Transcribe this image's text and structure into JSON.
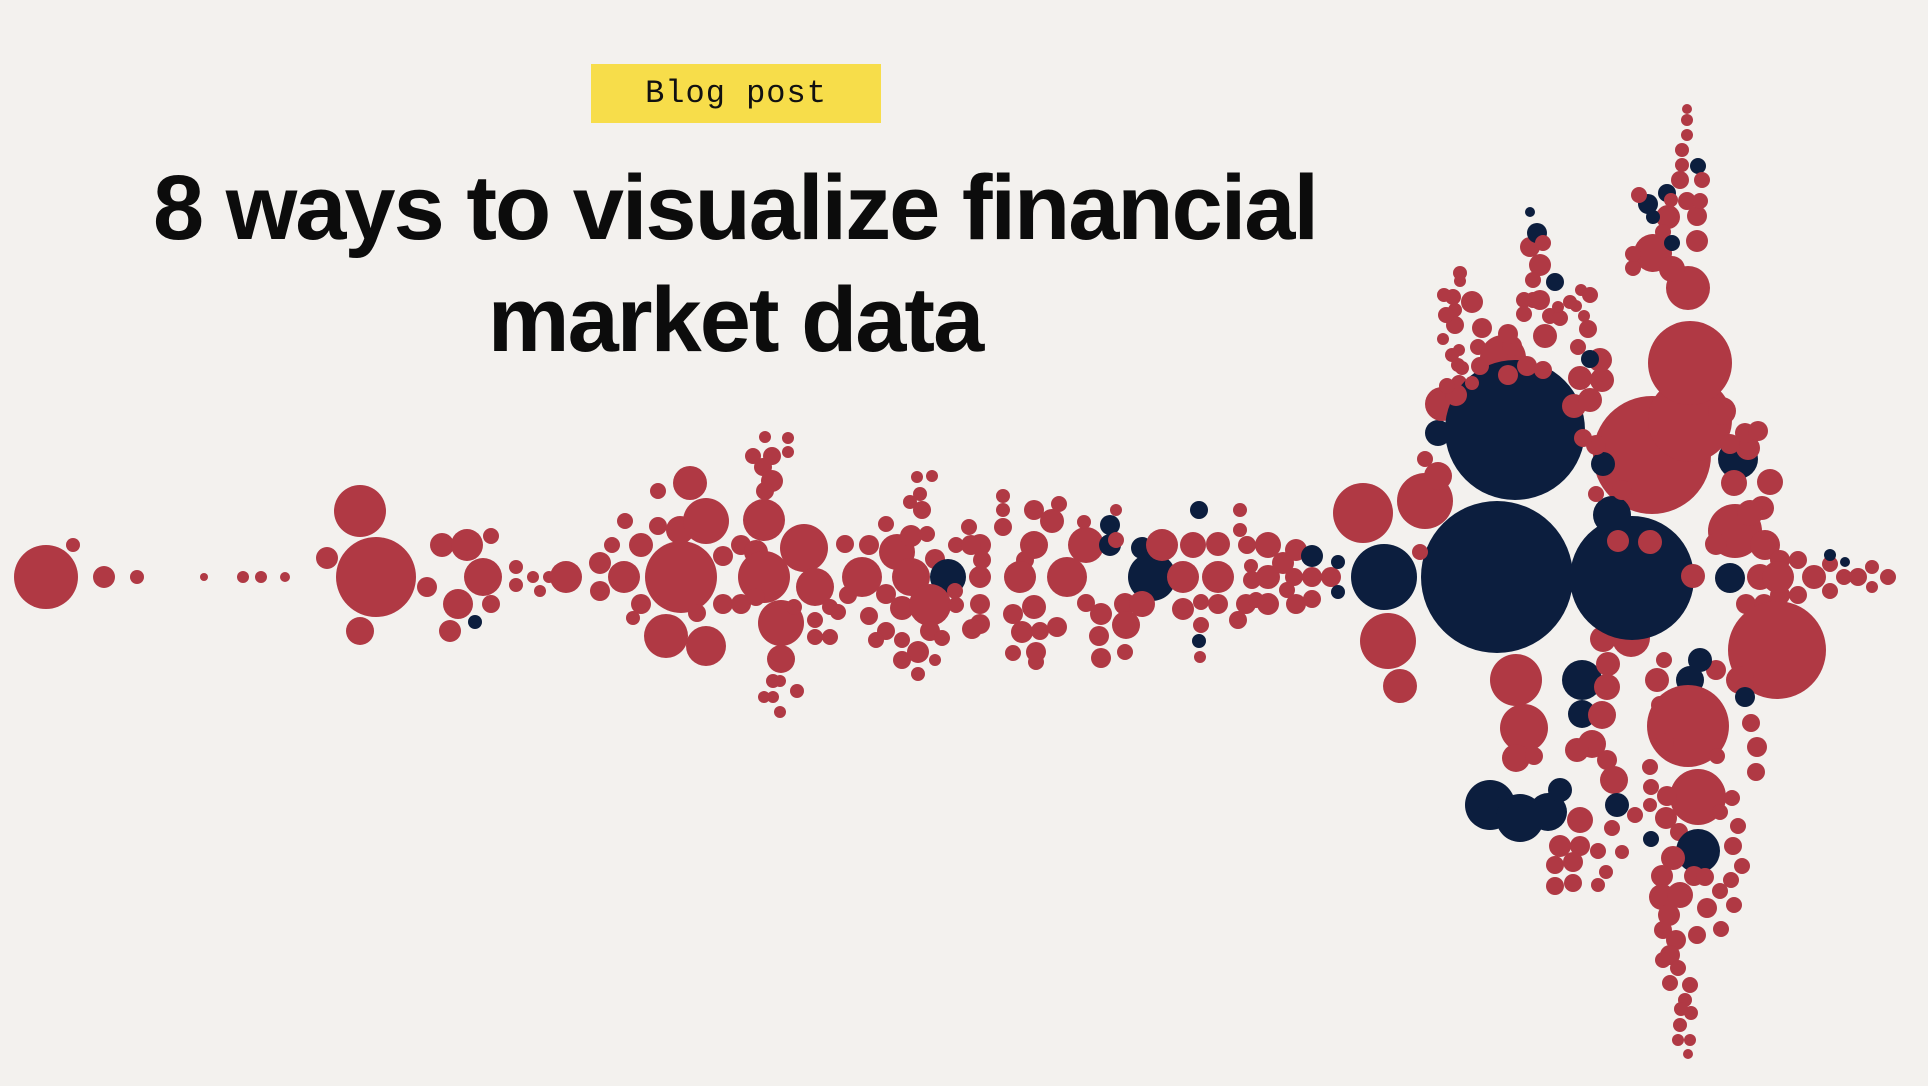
{
  "badge": {
    "label": "Blog post",
    "color": "#f7dd4a"
  },
  "title": {
    "line1": "8 ways to visualize financial",
    "line2": "market data"
  },
  "colors": {
    "background": "#f3f1ee",
    "bubble_red": "#b03944",
    "bubble_navy": "#0c1e3e"
  }
}
